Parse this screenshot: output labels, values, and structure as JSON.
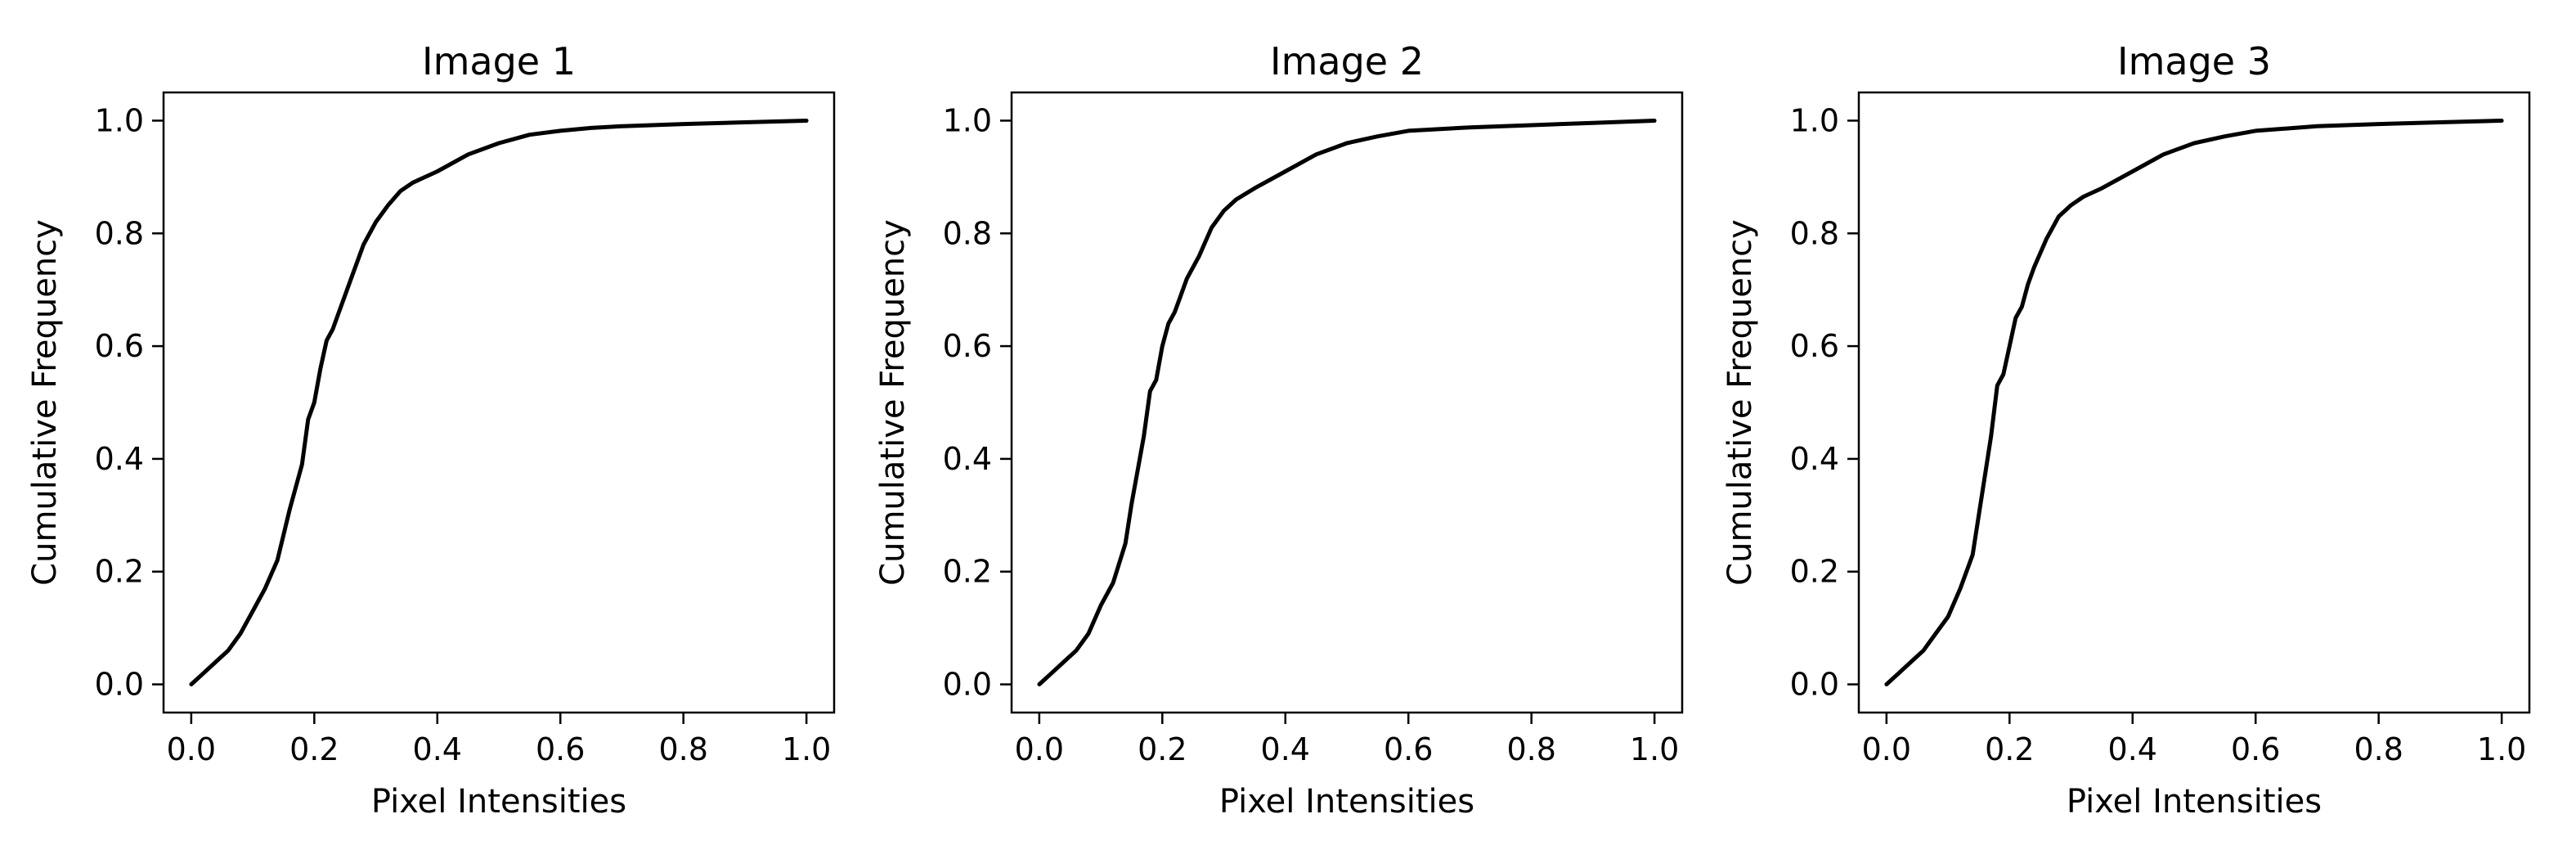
{
  "colors": {
    "line": "#000000",
    "background": "#ffffff",
    "frame": "#000000"
  },
  "chart_data": [
    {
      "type": "line",
      "title": "Image 1",
      "xlabel": "Pixel Intensities",
      "ylabel": "Cumulative Frequency",
      "xlim": [
        -0.045,
        1.045
      ],
      "ylim": [
        -0.05,
        1.05
      ],
      "grid": false,
      "xticks": [
        0.0,
        0.2,
        0.4,
        0.6,
        0.8,
        1.0
      ],
      "xtick_labels": [
        "0.0",
        "0.2",
        "0.4",
        "0.6",
        "0.8",
        "1.0"
      ],
      "yticks": [
        0.0,
        0.2,
        0.4,
        0.6,
        0.8,
        1.0
      ],
      "ytick_labels": [
        "0.0",
        "0.2",
        "0.4",
        "0.6",
        "0.8",
        "1.0"
      ],
      "x": [
        0.0,
        0.02,
        0.04,
        0.06,
        0.08,
        0.1,
        0.12,
        0.14,
        0.16,
        0.18,
        0.19,
        0.2,
        0.21,
        0.22,
        0.23,
        0.24,
        0.26,
        0.28,
        0.3,
        0.32,
        0.34,
        0.36,
        0.4,
        0.45,
        0.5,
        0.55,
        0.6,
        0.65,
        0.7,
        0.8,
        0.9,
        1.0
      ],
      "y": [
        0.0,
        0.02,
        0.04,
        0.06,
        0.09,
        0.13,
        0.17,
        0.22,
        0.31,
        0.39,
        0.47,
        0.5,
        0.56,
        0.61,
        0.63,
        0.66,
        0.72,
        0.78,
        0.82,
        0.85,
        0.875,
        0.89,
        0.91,
        0.94,
        0.96,
        0.975,
        0.982,
        0.987,
        0.99,
        0.994,
        0.997,
        1.0
      ]
    },
    {
      "type": "line",
      "title": "Image 2",
      "xlabel": "Pixel Intensities",
      "ylabel": "Cumulative Frequency",
      "xlim": [
        -0.045,
        1.045
      ],
      "ylim": [
        -0.05,
        1.05
      ],
      "grid": false,
      "xticks": [
        0.0,
        0.2,
        0.4,
        0.6,
        0.8,
        1.0
      ],
      "xtick_labels": [
        "0.0",
        "0.2",
        "0.4",
        "0.6",
        "0.8",
        "1.0"
      ],
      "yticks": [
        0.0,
        0.2,
        0.4,
        0.6,
        0.8,
        1.0
      ],
      "ytick_labels": [
        "0.0",
        "0.2",
        "0.4",
        "0.6",
        "0.8",
        "1.0"
      ],
      "x": [
        0.0,
        0.02,
        0.04,
        0.06,
        0.08,
        0.1,
        0.12,
        0.14,
        0.15,
        0.16,
        0.17,
        0.18,
        0.19,
        0.2,
        0.21,
        0.22,
        0.23,
        0.24,
        0.26,
        0.28,
        0.3,
        0.32,
        0.35,
        0.4,
        0.45,
        0.5,
        0.55,
        0.6,
        0.7,
        0.8,
        0.9,
        1.0
      ],
      "y": [
        0.0,
        0.02,
        0.04,
        0.06,
        0.09,
        0.14,
        0.18,
        0.25,
        0.32,
        0.38,
        0.44,
        0.52,
        0.54,
        0.6,
        0.64,
        0.66,
        0.69,
        0.72,
        0.76,
        0.81,
        0.84,
        0.86,
        0.88,
        0.91,
        0.94,
        0.96,
        0.972,
        0.982,
        0.988,
        0.992,
        0.996,
        1.0
      ]
    },
    {
      "type": "line",
      "title": "Image 3",
      "xlabel": "Pixel Intensities",
      "ylabel": "Cumulative Frequency",
      "xlim": [
        -0.045,
        1.045
      ],
      "ylim": [
        -0.05,
        1.05
      ],
      "grid": false,
      "xticks": [
        0.0,
        0.2,
        0.4,
        0.6,
        0.8,
        1.0
      ],
      "xtick_labels": [
        "0.0",
        "0.2",
        "0.4",
        "0.6",
        "0.8",
        "1.0"
      ],
      "yticks": [
        0.0,
        0.2,
        0.4,
        0.6,
        0.8,
        1.0
      ],
      "ytick_labels": [
        "0.0",
        "0.2",
        "0.4",
        "0.6",
        "0.8",
        "1.0"
      ],
      "x": [
        0.0,
        0.02,
        0.04,
        0.06,
        0.08,
        0.1,
        0.12,
        0.14,
        0.15,
        0.16,
        0.17,
        0.18,
        0.19,
        0.2,
        0.21,
        0.22,
        0.23,
        0.24,
        0.26,
        0.28,
        0.3,
        0.32,
        0.35,
        0.4,
        0.45,
        0.5,
        0.55,
        0.6,
        0.7,
        0.8,
        0.9,
        1.0
      ],
      "y": [
        0.0,
        0.02,
        0.04,
        0.06,
        0.09,
        0.12,
        0.17,
        0.23,
        0.3,
        0.37,
        0.44,
        0.53,
        0.55,
        0.6,
        0.65,
        0.67,
        0.71,
        0.74,
        0.79,
        0.83,
        0.85,
        0.865,
        0.88,
        0.91,
        0.94,
        0.96,
        0.972,
        0.982,
        0.99,
        0.994,
        0.997,
        1.0
      ]
    }
  ]
}
